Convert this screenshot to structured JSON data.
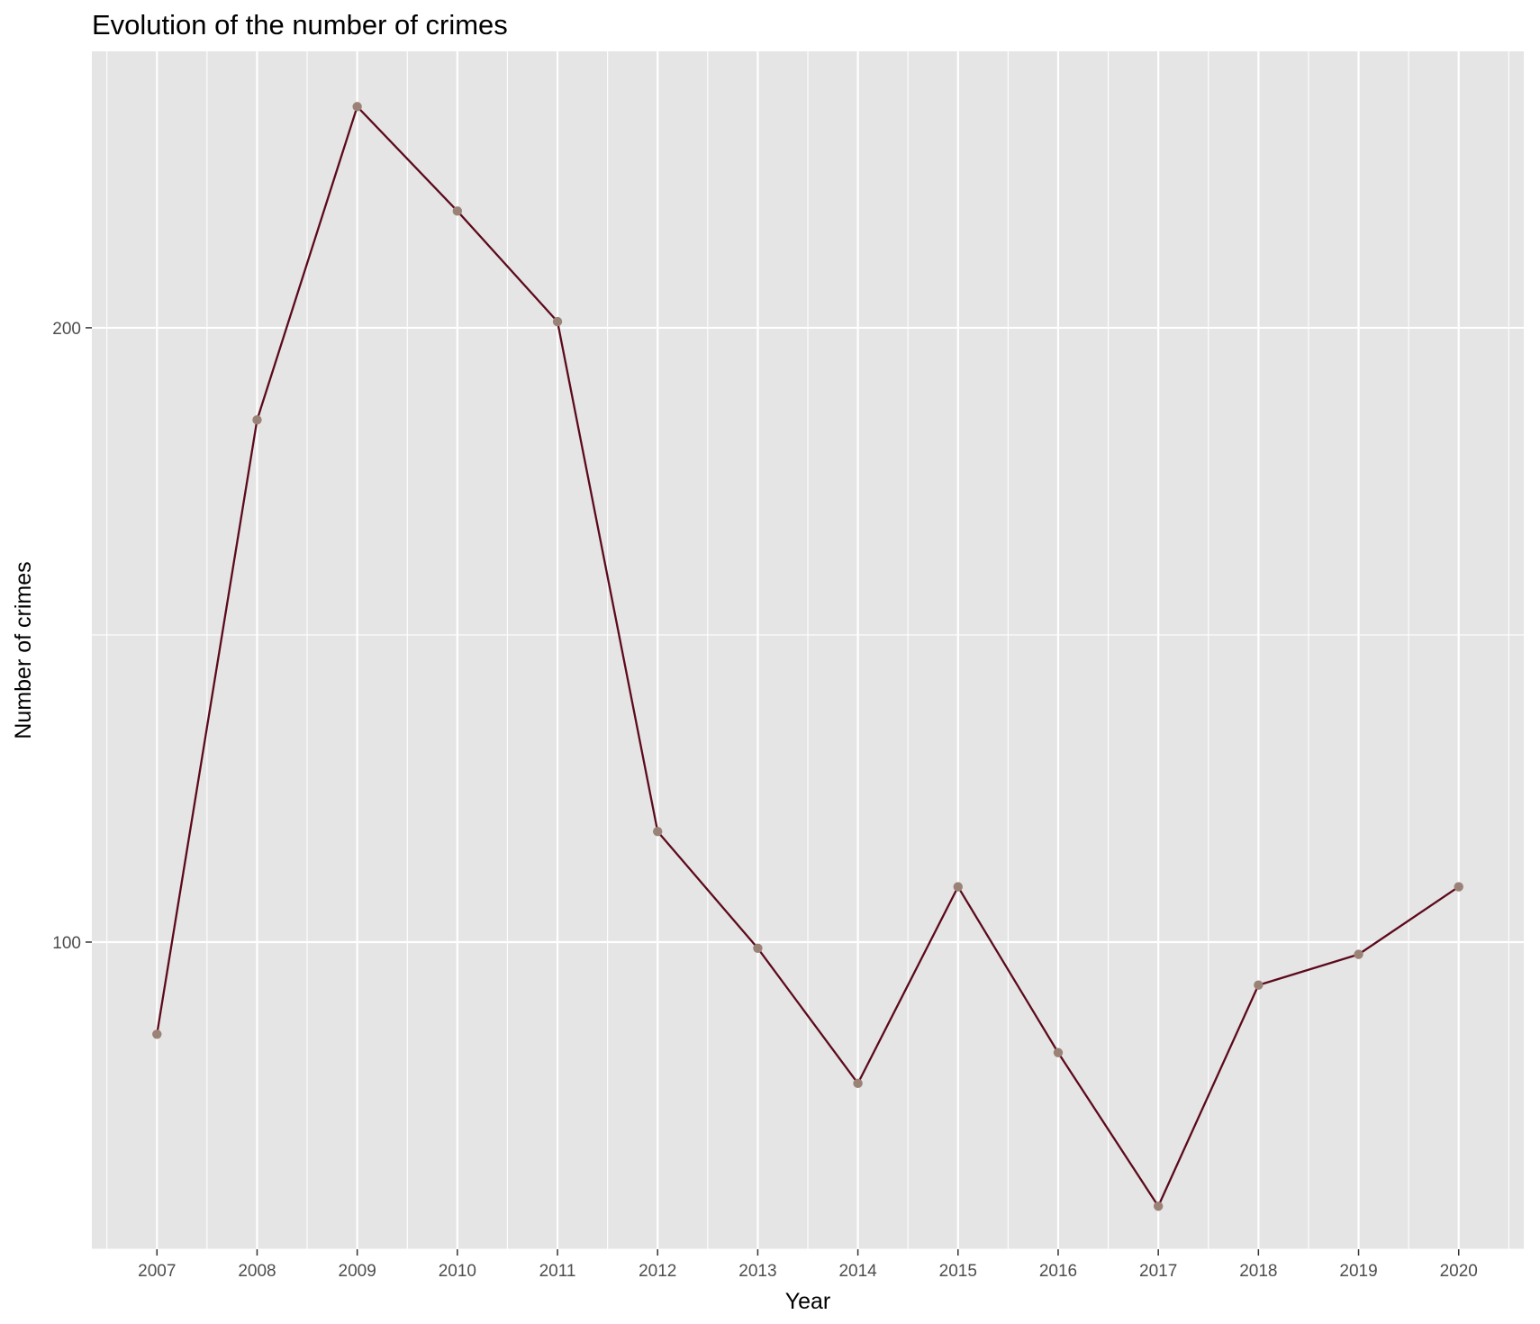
{
  "chart_data": {
    "type": "line",
    "title": "Evolution of the number of crimes",
    "xlabel": "Year",
    "ylabel": "Number of crimes",
    "x": [
      2007,
      2008,
      2009,
      2010,
      2011,
      2012,
      2013,
      2014,
      2015,
      2016,
      2017,
      2018,
      2019,
      2020
    ],
    "x_tick_labels": [
      "2007",
      "2008",
      "2009",
      "2010",
      "2011",
      "2012",
      "2013",
      "2014",
      "2015",
      "2016",
      "2017",
      "2018",
      "2019",
      "2020"
    ],
    "y_ticks": [
      100,
      200
    ],
    "y_tick_labels": [
      "100",
      "200"
    ],
    "series": [
      {
        "values": [
          85,
          185,
          236,
          219,
          201,
          118,
          99,
          77,
          109,
          82,
          57,
          93,
          98,
          109
        ]
      }
    ],
    "xlim": [
      2006.35,
      2020.65
    ],
    "ylim": [
      50,
      245
    ],
    "grid": true,
    "colors": {
      "panel_background": "#e5e5e5",
      "grid_line": "#ffffff",
      "line": "#5c0a1c",
      "point": "#9b8277",
      "axis_text": "#4d4d4d",
      "tick_mark": "#333333"
    }
  }
}
